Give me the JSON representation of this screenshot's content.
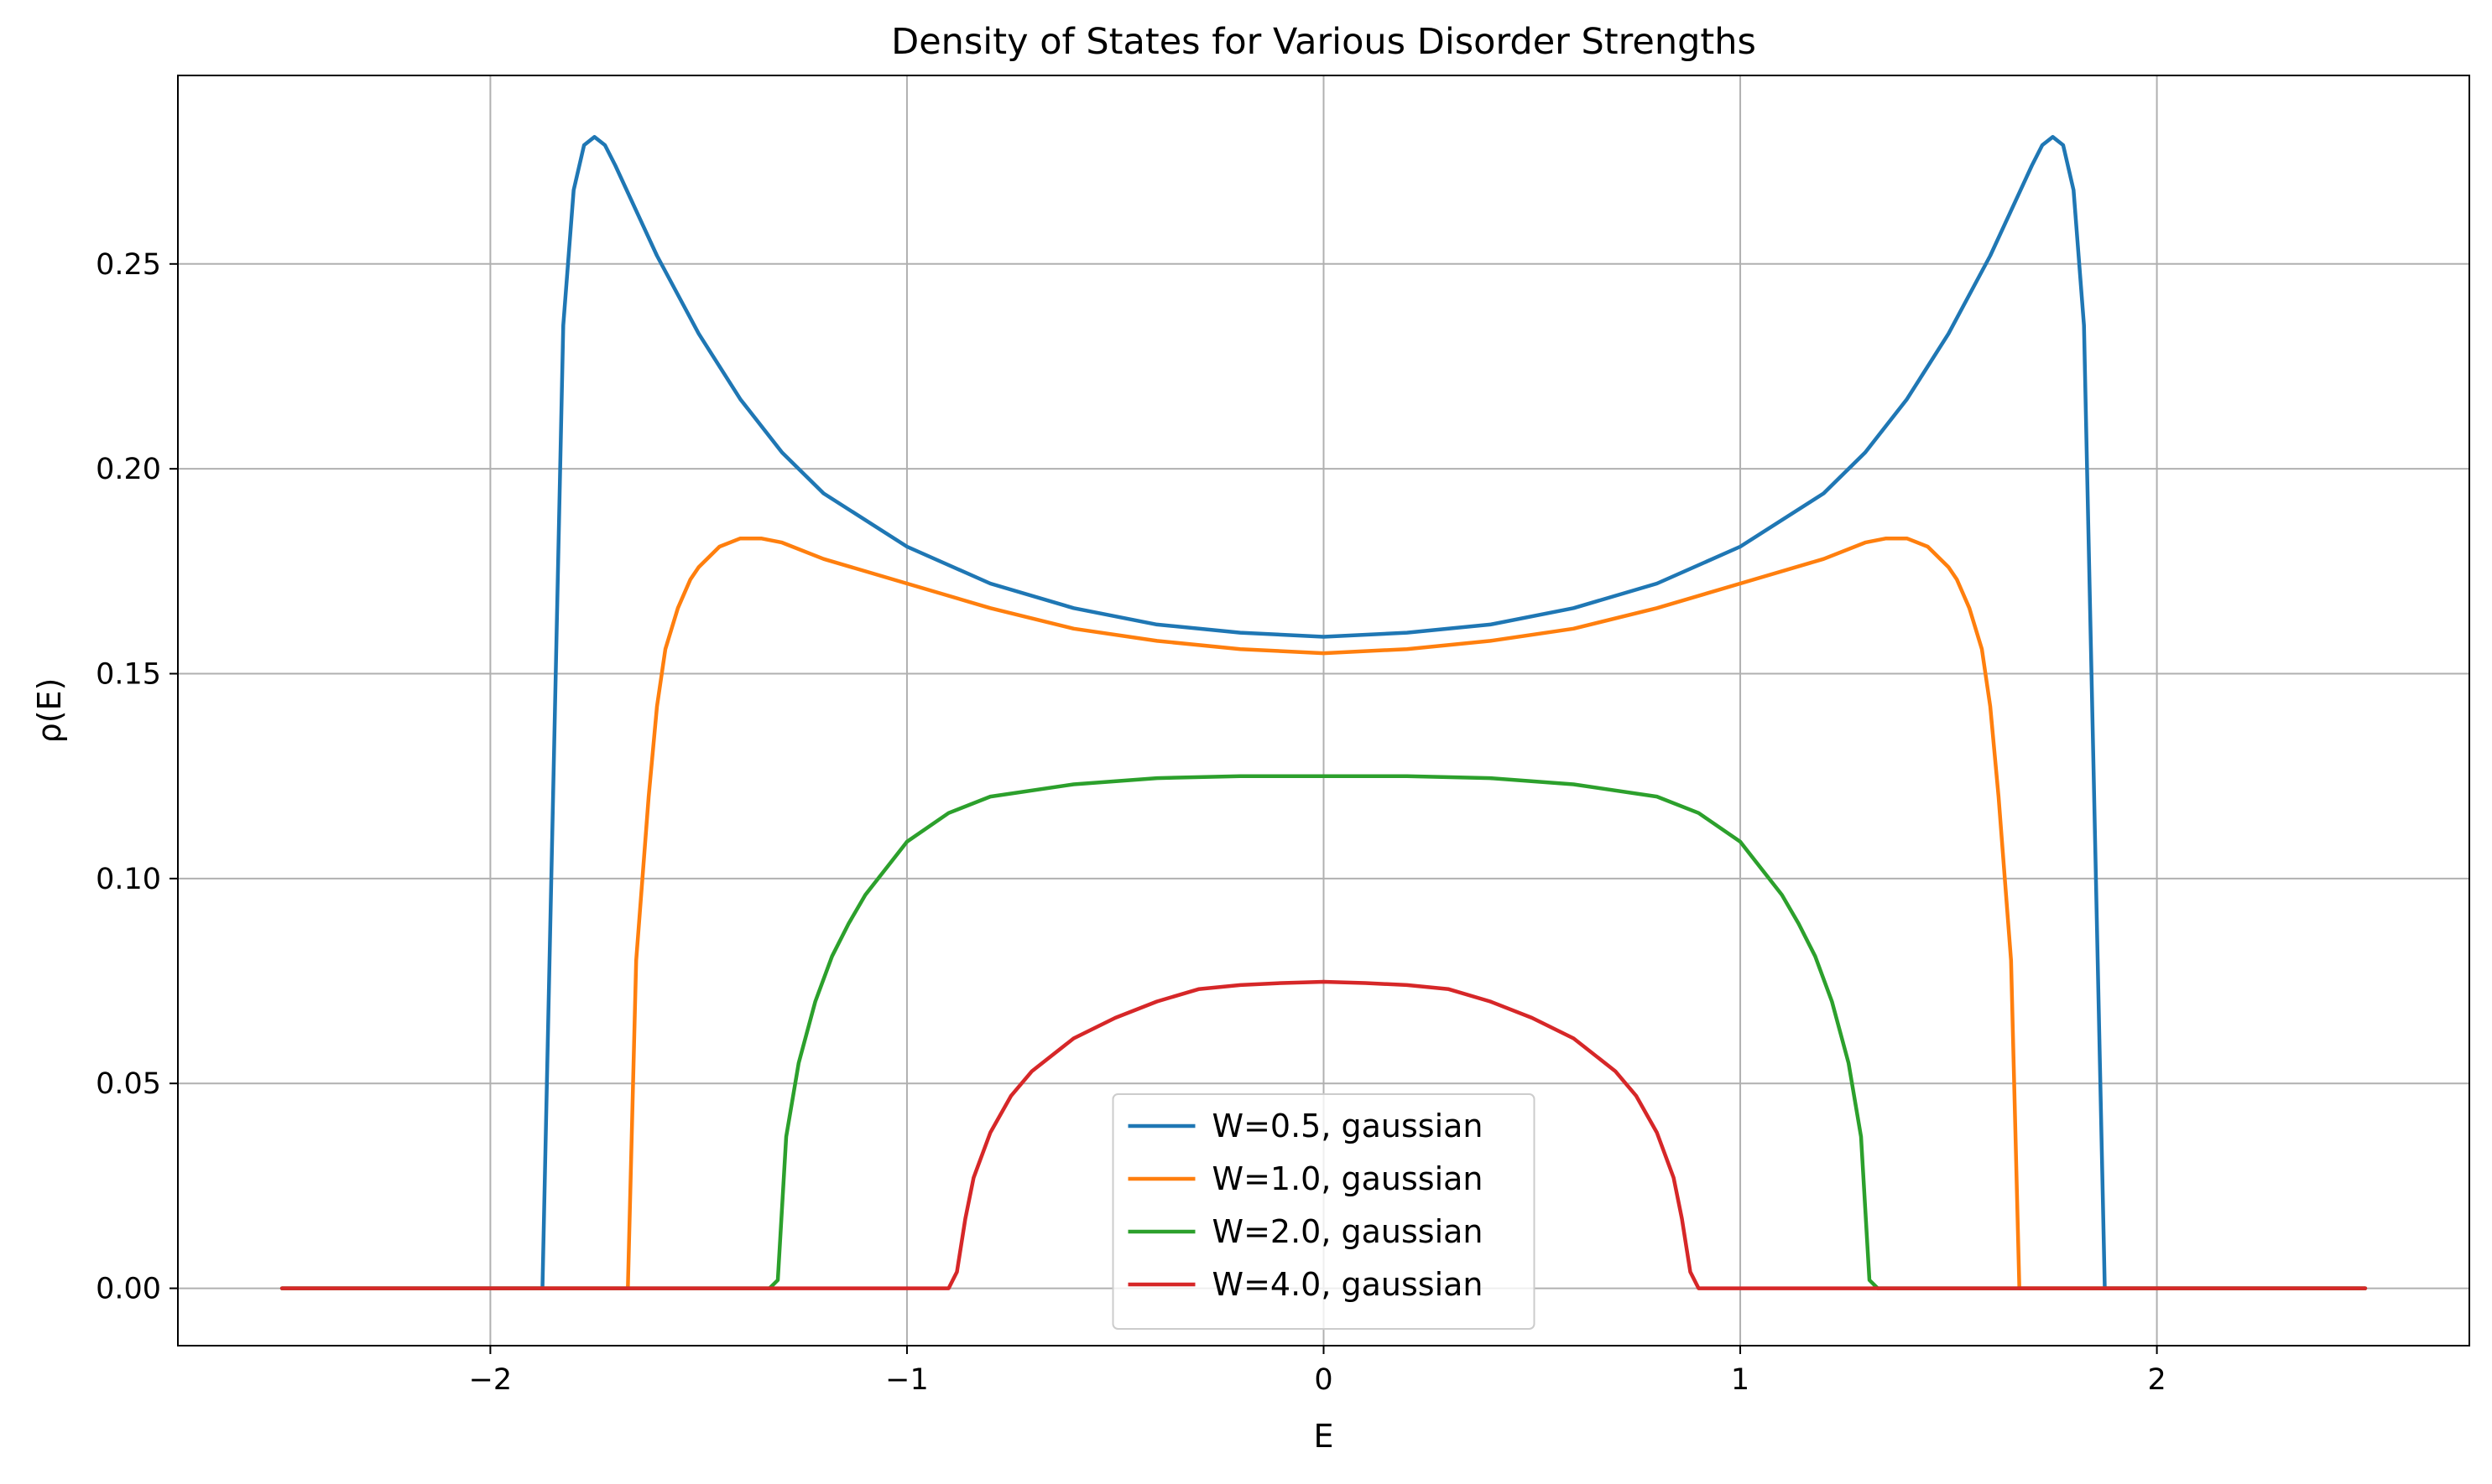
{
  "chart_data": {
    "type": "line",
    "title": "Density of States for Various Disorder Strengths",
    "xlabel": "E",
    "ylabel": "ρ(E)",
    "xlim": [
      -2.75,
      2.75
    ],
    "ylim": [
      -0.014,
      0.296
    ],
    "xticks": [
      -2,
      -1,
      0,
      1,
      2
    ],
    "xtick_labels": [
      "−2",
      "−1",
      "0",
      "1",
      "2"
    ],
    "yticks": [
      0.0,
      0.05,
      0.1,
      0.15,
      0.2,
      0.25
    ],
    "ytick_labels": [
      "0.00",
      "0.05",
      "0.10",
      "0.15",
      "0.20",
      "0.25"
    ],
    "grid": true,
    "legend_position": "lower center",
    "series": [
      {
        "name": "W=0.5, gaussian",
        "color": "#1f77b4",
        "x": [
          -2.5,
          -1.9,
          -1.875,
          -1.825,
          -1.8,
          -1.775,
          -1.75,
          -1.725,
          -1.7,
          -1.6,
          -1.5,
          -1.4,
          -1.3,
          -1.2,
          -1.0,
          -0.8,
          -0.6,
          -0.4,
          -0.2,
          0.0,
          0.2,
          0.4,
          0.6,
          0.8,
          1.0,
          1.2,
          1.3,
          1.4,
          1.5,
          1.6,
          1.7,
          1.725,
          1.75,
          1.775,
          1.8,
          1.825,
          1.875,
          1.9,
          2.5
        ],
        "y": [
          0.0,
          0.0,
          0.0,
          0.235,
          0.268,
          0.279,
          0.281,
          0.279,
          0.274,
          0.252,
          0.233,
          0.217,
          0.204,
          0.194,
          0.181,
          0.172,
          0.166,
          0.162,
          0.16,
          0.159,
          0.16,
          0.162,
          0.166,
          0.172,
          0.181,
          0.194,
          0.204,
          0.217,
          0.233,
          0.252,
          0.274,
          0.279,
          0.281,
          0.279,
          0.268,
          0.235,
          0.0,
          0.0,
          0.0
        ]
      },
      {
        "name": "W=1.0, gaussian",
        "color": "#ff7f0e",
        "x": [
          -2.5,
          -1.68,
          -1.67,
          -1.65,
          -1.62,
          -1.6,
          -1.58,
          -1.55,
          -1.52,
          -1.5,
          -1.45,
          -1.4,
          -1.35,
          -1.3,
          -1.2,
          -1.0,
          -0.8,
          -0.6,
          -0.4,
          -0.2,
          0.0,
          0.2,
          0.4,
          0.6,
          0.8,
          1.0,
          1.2,
          1.3,
          1.35,
          1.4,
          1.45,
          1.5,
          1.52,
          1.55,
          1.58,
          1.6,
          1.62,
          1.65,
          1.67,
          1.68,
          2.5
        ],
        "y": [
          0.0,
          0.0,
          0.0,
          0.08,
          0.12,
          0.142,
          0.156,
          0.166,
          0.173,
          0.176,
          0.181,
          0.183,
          0.183,
          0.182,
          0.178,
          0.172,
          0.166,
          0.161,
          0.158,
          0.156,
          0.155,
          0.156,
          0.158,
          0.161,
          0.166,
          0.172,
          0.178,
          0.182,
          0.183,
          0.183,
          0.181,
          0.176,
          0.173,
          0.166,
          0.156,
          0.142,
          0.12,
          0.08,
          0.0,
          0.0,
          0.0
        ]
      },
      {
        "name": "W=2.0, gaussian",
        "color": "#2ca02c",
        "x": [
          -2.5,
          -1.33,
          -1.31,
          -1.29,
          -1.26,
          -1.22,
          -1.18,
          -1.14,
          -1.1,
          -1.0,
          -0.9,
          -0.8,
          -0.6,
          -0.4,
          -0.2,
          0.0,
          0.2,
          0.4,
          0.6,
          0.8,
          0.9,
          1.0,
          1.1,
          1.14,
          1.18,
          1.22,
          1.26,
          1.29,
          1.31,
          1.33,
          2.5
        ],
        "y": [
          0.0,
          0.0,
          0.002,
          0.037,
          0.055,
          0.07,
          0.081,
          0.089,
          0.096,
          0.109,
          0.116,
          0.12,
          0.123,
          0.1245,
          0.125,
          0.125,
          0.125,
          0.1245,
          0.123,
          0.12,
          0.116,
          0.109,
          0.096,
          0.089,
          0.081,
          0.07,
          0.055,
          0.037,
          0.002,
          0.0,
          0.0
        ]
      },
      {
        "name": "W=4.0, gaussian",
        "color": "#d62728",
        "x": [
          -2.5,
          -0.9,
          -0.88,
          -0.86,
          -0.84,
          -0.8,
          -0.75,
          -0.7,
          -0.6,
          -0.5,
          -0.4,
          -0.3,
          -0.2,
          -0.1,
          0.0,
          0.1,
          0.2,
          0.3,
          0.4,
          0.5,
          0.6,
          0.7,
          0.75,
          0.8,
          0.84,
          0.86,
          0.88,
          0.9,
          2.5
        ],
        "y": [
          0.0,
          0.0,
          0.004,
          0.017,
          0.027,
          0.038,
          0.047,
          0.053,
          0.061,
          0.066,
          0.07,
          0.073,
          0.074,
          0.0745,
          0.0748,
          0.0745,
          0.074,
          0.073,
          0.07,
          0.066,
          0.061,
          0.053,
          0.047,
          0.038,
          0.027,
          0.017,
          0.004,
          0.0,
          0.0
        ]
      }
    ]
  }
}
